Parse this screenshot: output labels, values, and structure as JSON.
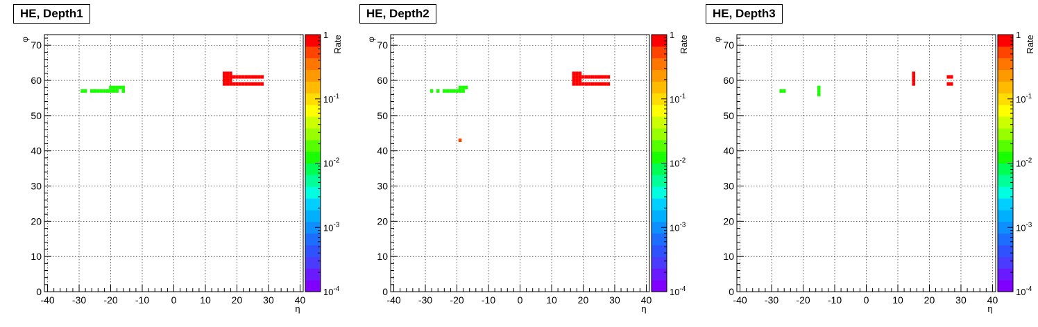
{
  "colors": {
    "palette": [
      "#7f00ff",
      "#6a1aff",
      "#4b3bff",
      "#2f52ff",
      "#1d6dff",
      "#0d8fff",
      "#00b0ff",
      "#00cfff",
      "#00ffe0",
      "#00ff99",
      "#00ff55",
      "#18ff00",
      "#55ff00",
      "#99ff00",
      "#ccff00",
      "#ffff00",
      "#ffdd00",
      "#ffbb00",
      "#ff9900",
      "#ff7700",
      "#ff4400",
      "#ff0000"
    ]
  },
  "chart_data": [
    {
      "type": "heatmap",
      "title": "HE, Depth1",
      "xlabel": "η",
      "ylabel": "φ",
      "zlabel": "Rate",
      "xlim": [
        -41,
        41
      ],
      "ylim": [
        0,
        73
      ],
      "zlim": [
        0.0001,
        1
      ],
      "zscale": "log",
      "grid": true,
      "xticks": [
        "-40",
        "-30",
        "-20",
        "-10",
        "0",
        "10",
        "20",
        "30",
        "40"
      ],
      "yticks": [
        "0",
        "10",
        "20",
        "30",
        "40",
        "50",
        "60",
        "70"
      ],
      "zticks": [
        {
          "base": "1",
          "exp": ""
        },
        {
          "base": "10",
          "exp": "-1"
        },
        {
          "base": "10",
          "exp": "-2"
        },
        {
          "base": "10",
          "exp": "-3"
        },
        {
          "base": "10",
          "exp": "-4"
        }
      ],
      "cells": [
        {
          "x": -29,
          "y": 57,
          "z": 0.012
        },
        {
          "x": -28,
          "y": 57,
          "z": 0.012
        },
        {
          "x": -26,
          "y": 57,
          "z": 0.012
        },
        {
          "x": -25,
          "y": 57,
          "z": 0.012
        },
        {
          "x": -24,
          "y": 57,
          "z": 0.012
        },
        {
          "x": -23,
          "y": 57,
          "z": 0.012
        },
        {
          "x": -22,
          "y": 57,
          "z": 0.012
        },
        {
          "x": -21,
          "y": 57,
          "z": 0.012
        },
        {
          "x": -20,
          "y": 57,
          "z": 0.012
        },
        {
          "x": -19,
          "y": 57,
          "z": 0.012
        },
        {
          "x": -18,
          "y": 57,
          "z": 0.012
        },
        {
          "x": -16,
          "y": 57,
          "z": 0.012
        },
        {
          "x": -20,
          "y": 58,
          "z": 0.012
        },
        {
          "x": -19,
          "y": 58,
          "z": 0.012
        },
        {
          "x": -18,
          "y": 58,
          "z": 0.012
        },
        {
          "x": -17,
          "y": 58,
          "z": 0.012
        },
        {
          "x": -16,
          "y": 58,
          "z": 0.012
        },
        {
          "x": 16,
          "y": 59,
          "z": 1
        },
        {
          "x": 17,
          "y": 59,
          "z": 1
        },
        {
          "x": 18,
          "y": 59,
          "z": 1
        },
        {
          "x": 19,
          "y": 59,
          "z": 1
        },
        {
          "x": 20,
          "y": 59,
          "z": 1
        },
        {
          "x": 21,
          "y": 59,
          "z": 1
        },
        {
          "x": 22,
          "y": 59,
          "z": 1
        },
        {
          "x": 23,
          "y": 59,
          "z": 1
        },
        {
          "x": 24,
          "y": 59,
          "z": 1
        },
        {
          "x": 25,
          "y": 59,
          "z": 1
        },
        {
          "x": 26,
          "y": 59,
          "z": 1
        },
        {
          "x": 27,
          "y": 59,
          "z": 1
        },
        {
          "x": 28,
          "y": 59,
          "z": 1
        },
        {
          "x": 16,
          "y": 60,
          "z": 1
        },
        {
          "x": 17,
          "y": 60,
          "z": 1
        },
        {
          "x": 18,
          "y": 60,
          "z": 1
        },
        {
          "x": 16,
          "y": 61,
          "z": 1
        },
        {
          "x": 17,
          "y": 61,
          "z": 1
        },
        {
          "x": 18,
          "y": 61,
          "z": 1
        },
        {
          "x": 19,
          "y": 61,
          "z": 1
        },
        {
          "x": 20,
          "y": 61,
          "z": 1
        },
        {
          "x": 21,
          "y": 61,
          "z": 1
        },
        {
          "x": 22,
          "y": 61,
          "z": 1
        },
        {
          "x": 23,
          "y": 61,
          "z": 1
        },
        {
          "x": 24,
          "y": 61,
          "z": 1
        },
        {
          "x": 25,
          "y": 61,
          "z": 1
        },
        {
          "x": 26,
          "y": 61,
          "z": 1
        },
        {
          "x": 27,
          "y": 61,
          "z": 1
        },
        {
          "x": 28,
          "y": 61,
          "z": 1
        },
        {
          "x": 16,
          "y": 62,
          "z": 1
        },
        {
          "x": 17,
          "y": 62,
          "z": 1
        },
        {
          "x": 18,
          "y": 62,
          "z": 1
        }
      ]
    },
    {
      "type": "heatmap",
      "title": "HE, Depth2",
      "xlabel": "η",
      "ylabel": "φ",
      "zlabel": "Rate",
      "xlim": [
        -41,
        41
      ],
      "ylim": [
        0,
        73
      ],
      "zlim": [
        0.0001,
        1
      ],
      "zscale": "log",
      "grid": true,
      "xticks": [
        "-40",
        "-30",
        "-20",
        "-10",
        "0",
        "10",
        "20",
        "30",
        "40"
      ],
      "yticks": [
        "0",
        "10",
        "20",
        "30",
        "40",
        "50",
        "60",
        "70"
      ],
      "zticks": [
        {
          "base": "1",
          "exp": ""
        },
        {
          "base": "10",
          "exp": "-1"
        },
        {
          "base": "10",
          "exp": "-2"
        },
        {
          "base": "10",
          "exp": "-3"
        },
        {
          "base": "10",
          "exp": "-4"
        }
      ],
      "cells": [
        {
          "x": -28,
          "y": 57,
          "z": 0.012
        },
        {
          "x": -26,
          "y": 57,
          "z": 0.012
        },
        {
          "x": -24,
          "y": 57,
          "z": 0.012
        },
        {
          "x": -23,
          "y": 57,
          "z": 0.012
        },
        {
          "x": -22,
          "y": 57,
          "z": 0.012
        },
        {
          "x": -21,
          "y": 57,
          "z": 0.012
        },
        {
          "x": -20,
          "y": 57,
          "z": 0.012
        },
        {
          "x": -19,
          "y": 57,
          "z": 0.012
        },
        {
          "x": -18,
          "y": 57,
          "z": 0.012
        },
        {
          "x": -19,
          "y": 58,
          "z": 0.012
        },
        {
          "x": -18,
          "y": 58,
          "z": 0.012
        },
        {
          "x": -17,
          "y": 58,
          "z": 0.012
        },
        {
          "x": -19,
          "y": 43,
          "z": 0.5
        },
        {
          "x": 17,
          "y": 59,
          "z": 1
        },
        {
          "x": 18,
          "y": 59,
          "z": 1
        },
        {
          "x": 19,
          "y": 59,
          "z": 1
        },
        {
          "x": 20,
          "y": 59,
          "z": 1
        },
        {
          "x": 21,
          "y": 59,
          "z": 1
        },
        {
          "x": 22,
          "y": 59,
          "z": 1
        },
        {
          "x": 23,
          "y": 59,
          "z": 1
        },
        {
          "x": 24,
          "y": 59,
          "z": 1
        },
        {
          "x": 25,
          "y": 59,
          "z": 1
        },
        {
          "x": 26,
          "y": 59,
          "z": 1
        },
        {
          "x": 27,
          "y": 59,
          "z": 1
        },
        {
          "x": 28,
          "y": 59,
          "z": 1
        },
        {
          "x": 17,
          "y": 60,
          "z": 1
        },
        {
          "x": 18,
          "y": 60,
          "z": 1
        },
        {
          "x": 19,
          "y": 60,
          "z": 1
        },
        {
          "x": 17,
          "y": 61,
          "z": 1
        },
        {
          "x": 18,
          "y": 61,
          "z": 1
        },
        {
          "x": 19,
          "y": 61,
          "z": 1
        },
        {
          "x": 20,
          "y": 61,
          "z": 1
        },
        {
          "x": 21,
          "y": 61,
          "z": 1
        },
        {
          "x": 22,
          "y": 61,
          "z": 1
        },
        {
          "x": 23,
          "y": 61,
          "z": 1
        },
        {
          "x": 24,
          "y": 61,
          "z": 1
        },
        {
          "x": 25,
          "y": 61,
          "z": 1
        },
        {
          "x": 26,
          "y": 61,
          "z": 1
        },
        {
          "x": 27,
          "y": 61,
          "z": 1
        },
        {
          "x": 28,
          "y": 61,
          "z": 1
        },
        {
          "x": 17,
          "y": 62,
          "z": 1
        },
        {
          "x": 18,
          "y": 62,
          "z": 1
        },
        {
          "x": 19,
          "y": 62,
          "z": 1
        }
      ]
    },
    {
      "type": "heatmap",
      "title": "HE, Depth3",
      "xlabel": "η",
      "ylabel": "φ",
      "zlabel": "Rate",
      "xlim": [
        -41,
        41
      ],
      "ylim": [
        0,
        73
      ],
      "zlim": [
        0.0001,
        1
      ],
      "zscale": "log",
      "grid": true,
      "xticks": [
        "-40",
        "-30",
        "-20",
        "-10",
        "0",
        "10",
        "20",
        "30",
        "40"
      ],
      "yticks": [
        "0",
        "10",
        "20",
        "30",
        "40",
        "50",
        "60",
        "70"
      ],
      "zticks": [
        {
          "base": "1",
          "exp": ""
        },
        {
          "base": "10",
          "exp": "-1"
        },
        {
          "base": "10",
          "exp": "-2"
        },
        {
          "base": "10",
          "exp": "-3"
        },
        {
          "base": "10",
          "exp": "-4"
        }
      ],
      "cells": [
        {
          "x": -27,
          "y": 57,
          "z": 0.012
        },
        {
          "x": -26,
          "y": 57,
          "z": 0.012
        },
        {
          "x": -15,
          "y": 56,
          "z": 0.012
        },
        {
          "x": -15,
          "y": 57,
          "z": 0.012
        },
        {
          "x": -15,
          "y": 58,
          "z": 0.012
        },
        {
          "x": 15,
          "y": 59,
          "z": 1
        },
        {
          "x": 15,
          "y": 60,
          "z": 1
        },
        {
          "x": 15,
          "y": 61,
          "z": 1
        },
        {
          "x": 15,
          "y": 62,
          "z": 1
        },
        {
          "x": 26,
          "y": 59,
          "z": 1
        },
        {
          "x": 27,
          "y": 59,
          "z": 1
        },
        {
          "x": 26,
          "y": 61,
          "z": 1
        },
        {
          "x": 27,
          "y": 61,
          "z": 1
        }
      ]
    }
  ]
}
